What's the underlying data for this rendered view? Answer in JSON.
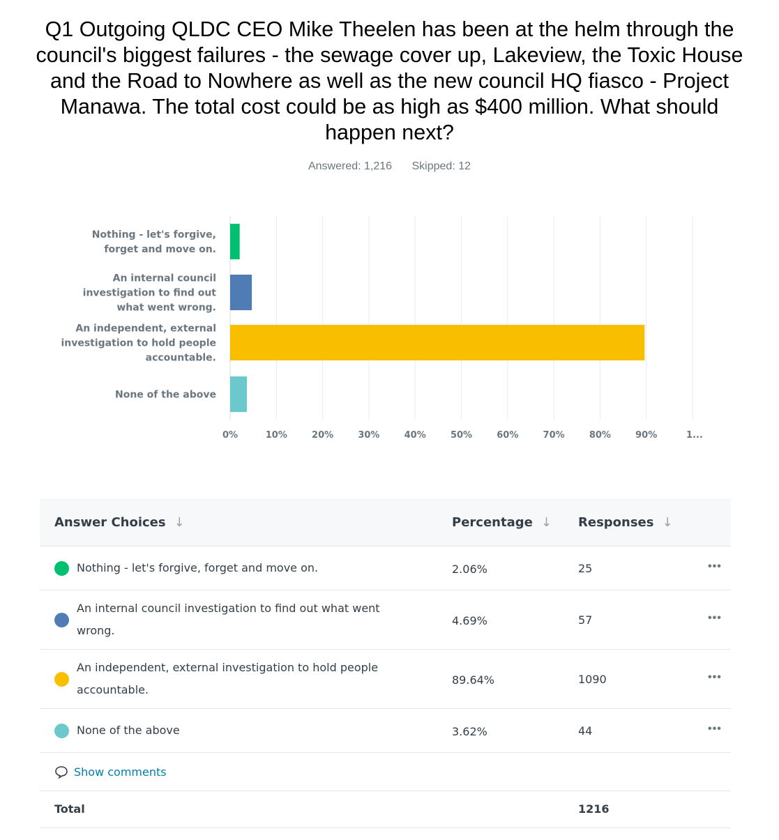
{
  "question": "Q1 Outgoing QLDC CEO Mike Theelen has been at the helm through the council's biggest failures - the sewage cover up, Lakeview, the Toxic House and the Road to Nowhere as well as the new council HQ fiasco - Project Manawa. The total cost could be as high as $400 million. What should happen next?",
  "stats": {
    "answered": "Answered: 1,216",
    "skipped": "Skipped: 12"
  },
  "chart_data": {
    "type": "bar",
    "orientation": "horizontal",
    "title": "",
    "categories": [
      "Nothing - let's forgive, forget and move on.",
      "An internal council investigation to find out what went wrong.",
      "An independent, external investigation to hold people accountable.",
      "None of the above"
    ],
    "category_label_lines": [
      [
        "Nothing - let's forgive,",
        "forget and move on."
      ],
      [
        "An internal council",
        "investigation to find out",
        "what went wrong."
      ],
      [
        "An independent, external",
        "investigation to hold people",
        "accountable."
      ],
      [
        "None of the above"
      ]
    ],
    "values": [
      2.06,
      4.69,
      89.64,
      3.62
    ],
    "colors": [
      "#00bf6f",
      "#507cb6",
      "#f9be00",
      "#6bc8cd"
    ],
    "xlim": [
      0,
      100
    ],
    "x_ticks": [
      "0%",
      "10%",
      "20%",
      "30%",
      "40%",
      "50%",
      "60%",
      "70%",
      "80%",
      "90%",
      "1..."
    ],
    "xlabel": "",
    "ylabel": "",
    "grid": true
  },
  "table": {
    "headers": {
      "choice": "Answer Choices",
      "percentage": "Percentage",
      "responses": "Responses"
    },
    "sort_icon": "↓",
    "more_icon": "•••",
    "rows": [
      {
        "choice": "Nothing - let's forgive, forget and move on.",
        "percentage": "2.06%",
        "responses": "25",
        "color": "#00bf6f"
      },
      {
        "choice": "An internal council investigation to find out what went wrong.",
        "percentage": "4.69%",
        "responses": "57",
        "color": "#507cb6"
      },
      {
        "choice": "An independent, external investigation to hold people accountable.",
        "percentage": "89.64%",
        "responses": "1090",
        "color": "#f9be00"
      },
      {
        "choice": "None of the above",
        "percentage": "3.62%",
        "responses": "44",
        "color": "#6bc8cd"
      }
    ],
    "show_comments": "Show comments",
    "total_label": "Total",
    "total_value": "1216"
  }
}
